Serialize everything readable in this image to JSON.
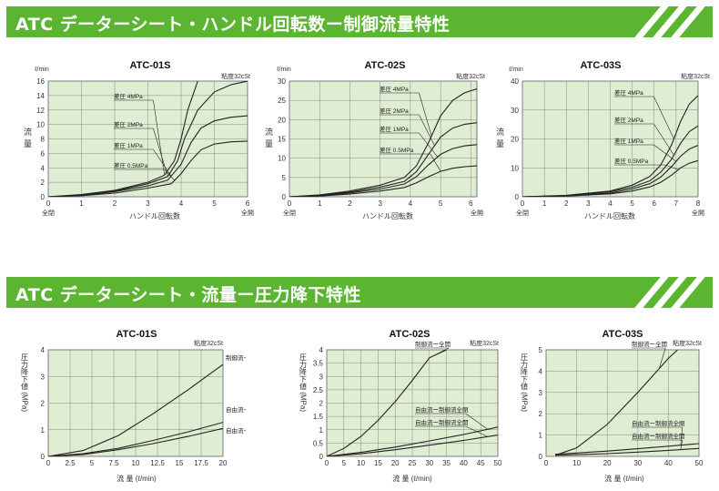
{
  "banners": [
    {
      "title": "ATC データーシート・ハンドル回転数ー制御流量特性"
    },
    {
      "title": "ATC データーシート・流量ー圧力降下特性"
    }
  ],
  "chart_data": [
    {
      "type": "line",
      "title": "ATC-01S",
      "viscosity_note": "粘度32cSt",
      "y_unit": "ℓ/min",
      "ylabel": "流量",
      "xlabel": "ハンドル回転数",
      "xlim": [
        0,
        6
      ],
      "ylim": [
        0,
        16
      ],
      "xticks": [
        0,
        1,
        2,
        3,
        4,
        5,
        6
      ],
      "yticks": [
        0,
        2,
        4,
        6,
        8,
        10,
        12,
        14,
        16
      ],
      "x_end_labels": {
        "start": "全閉",
        "end": "全開"
      },
      "series": [
        {
          "name": "差圧 4MPa",
          "x": [
            0,
            1,
            2,
            3,
            3.5,
            3.8,
            4.0,
            4.2,
            4.5
          ],
          "y": [
            0,
            0.3,
            0.9,
            2.0,
            3.0,
            5.0,
            8.0,
            12.0,
            16.0
          ]
        },
        {
          "name": "差圧 2MPa",
          "x": [
            0,
            1,
            2,
            3,
            3.6,
            3.9,
            4.1,
            4.5,
            5.0,
            5.5,
            6.0
          ],
          "y": [
            0,
            0.25,
            0.8,
            1.8,
            2.8,
            5.0,
            8.0,
            12.0,
            14.5,
            15.5,
            16.0
          ]
        },
        {
          "name": "差圧 1MPa",
          "x": [
            0,
            1,
            2,
            3,
            3.6,
            4.0,
            4.3,
            4.6,
            5.0,
            5.5,
            6.0
          ],
          "y": [
            0,
            0.2,
            0.7,
            1.5,
            2.3,
            4.5,
            7.5,
            9.5,
            10.5,
            11.0,
            11.2
          ]
        },
        {
          "name": "差圧 0.5MPa",
          "x": [
            0,
            1,
            2,
            3,
            3.7,
            4.0,
            4.3,
            4.6,
            5.0,
            5.5,
            6.0
          ],
          "y": [
            0,
            0.15,
            0.5,
            1.2,
            1.8,
            3.2,
            5.0,
            6.5,
            7.3,
            7.6,
            7.7
          ]
        }
      ]
    },
    {
      "type": "line",
      "title": "ATC-02S",
      "viscosity_note": "粘度32cSt",
      "y_unit": "ℓ/min",
      "ylabel": "流量",
      "xlabel": "ハンドル回転数",
      "xlim": [
        0,
        6.2
      ],
      "ylim": [
        0,
        30
      ],
      "xticks": [
        0,
        1,
        2,
        3,
        4,
        5,
        6
      ],
      "yticks": [
        0,
        5,
        10,
        15,
        20,
        25,
        30
      ],
      "x_end_labels": {
        "start": "全閉",
        "end": "全開"
      },
      "series": [
        {
          "name": "差圧 4MPa",
          "x": [
            0,
            1,
            2,
            3,
            3.8,
            4.2,
            4.6,
            5.0,
            5.4,
            5.8,
            6.2
          ],
          "y": [
            0,
            0.5,
            1.5,
            3.0,
            5.0,
            8.0,
            14.0,
            21.0,
            25.0,
            27.0,
            28.0
          ]
        },
        {
          "name": "差圧 2MPa",
          "x": [
            0,
            1,
            2,
            3,
            3.8,
            4.2,
            4.6,
            5.0,
            5.4,
            5.8,
            6.2
          ],
          "y": [
            0,
            0.4,
            1.2,
            2.5,
            4.0,
            6.5,
            11.0,
            15.5,
            17.8,
            18.8,
            19.2
          ]
        },
        {
          "name": "差圧 1MPa",
          "x": [
            0,
            1,
            2,
            3,
            3.8,
            4.2,
            4.6,
            5.0,
            5.4,
            5.8,
            6.2
          ],
          "y": [
            0,
            0.3,
            1.0,
            2.0,
            3.3,
            5.2,
            8.3,
            11.0,
            12.5,
            13.2,
            13.5
          ]
        },
        {
          "name": "差圧 0.5MPa",
          "x": [
            0,
            1,
            2,
            3,
            3.8,
            4.2,
            4.6,
            5.0,
            5.4,
            5.8,
            6.2
          ],
          "y": [
            0,
            0.2,
            0.7,
            1.5,
            2.4,
            3.6,
            5.2,
            6.6,
            7.4,
            7.8,
            8.0
          ]
        }
      ]
    },
    {
      "type": "line",
      "title": "ATC-03S",
      "viscosity_note": "粘度32cSt",
      "y_unit": "ℓ/min",
      "ylabel": "流量",
      "xlabel": "ハンドル回転数",
      "xlim": [
        0,
        8
      ],
      "ylim": [
        0,
        40
      ],
      "xticks": [
        0,
        1,
        2,
        3,
        4,
        5,
        6,
        7,
        8
      ],
      "yticks": [
        0,
        10,
        20,
        30,
        40
      ],
      "x_end_labels": {
        "start": "全閉",
        "end": "全開"
      },
      "series": [
        {
          "name": "差圧 4MPa",
          "x": [
            0,
            2,
            4,
            5,
            5.8,
            6.3,
            6.8,
            7.2,
            7.6,
            8.0
          ],
          "y": [
            0,
            0.5,
            2.0,
            4.0,
            7.0,
            11.0,
            18.0,
            26.0,
            32.0,
            35.0
          ]
        },
        {
          "name": "差圧 2MPa",
          "x": [
            0,
            2,
            4,
            5,
            5.8,
            6.3,
            6.8,
            7.2,
            7.6,
            8.0
          ],
          "y": [
            0,
            0.4,
            1.7,
            3.3,
            5.5,
            8.5,
            13.0,
            18.5,
            22.5,
            24.5
          ]
        },
        {
          "name": "差圧 1MPa",
          "x": [
            0,
            2,
            4,
            5,
            5.8,
            6.3,
            6.8,
            7.2,
            7.6,
            8.0
          ],
          "y": [
            0,
            0.3,
            1.3,
            2.7,
            4.5,
            6.8,
            10.5,
            14.0,
            16.5,
            17.8
          ]
        },
        {
          "name": "差圧 0.5MPa",
          "x": [
            0,
            2,
            4,
            5,
            5.8,
            6.3,
            6.8,
            7.2,
            7.6,
            8.0
          ],
          "y": [
            0,
            0.25,
            1.0,
            2.0,
            3.4,
            5.0,
            7.5,
            10.0,
            11.6,
            12.5
          ]
        }
      ]
    },
    {
      "type": "line",
      "title": "ATC-01S",
      "viscosity_note": "粘度32cSt",
      "ylabel": "圧力降下値 (MPa)",
      "xlabel": "流 量 (ℓ/min)",
      "xlim": [
        0,
        20
      ],
      "ylim": [
        0,
        4
      ],
      "xticks": [
        0,
        2.5,
        5,
        7.5,
        10,
        12.5,
        15,
        17.5,
        20
      ],
      "yticks": [
        0,
        1,
        2,
        3,
        4
      ],
      "series": [
        {
          "name": "制御流ー全開",
          "x": [
            0,
            4,
            8,
            12,
            16,
            20
          ],
          "y": [
            0,
            0.22,
            0.78,
            1.6,
            2.5,
            3.45
          ]
        },
        {
          "name": "自由流ー制御流全閉",
          "x": [
            0,
            4,
            8,
            12,
            16,
            20
          ],
          "y": [
            0,
            0.1,
            0.3,
            0.6,
            0.92,
            1.28
          ]
        },
        {
          "name": "自由流ー制御流全開",
          "x": [
            0,
            4,
            8,
            12,
            16,
            20
          ],
          "y": [
            0,
            0.07,
            0.25,
            0.48,
            0.75,
            1.05
          ]
        }
      ]
    },
    {
      "type": "line",
      "title": "ATC-02S",
      "viscosity_note": "粘度32cSt",
      "ylabel": "圧力降下値 (MPa)",
      "xlabel": "流 量 (ℓ/min)",
      "xlim": [
        0,
        50
      ],
      "ylim": [
        0,
        4
      ],
      "xticks": [
        0,
        5,
        10,
        15,
        20,
        25,
        30,
        35,
        40,
        45,
        50
      ],
      "yticks": [
        0,
        0.5,
        1,
        1.5,
        2,
        2.5,
        3,
        3.5,
        4
      ],
      "series": [
        {
          "name": "制御流ー全開",
          "x": [
            0,
            5,
            10,
            15,
            20,
            25,
            30,
            35
          ],
          "y": [
            0,
            0.3,
            0.75,
            1.35,
            2.05,
            2.85,
            3.7,
            4.0
          ]
        },
        {
          "name": "自由流ー制御流全閉",
          "x": [
            0,
            10,
            20,
            30,
            40,
            50
          ],
          "y": [
            0,
            0.15,
            0.35,
            0.58,
            0.82,
            1.1
          ]
        },
        {
          "name": "自由流ー制御流全開",
          "x": [
            0,
            10,
            20,
            30,
            40,
            50
          ],
          "y": [
            0,
            0.1,
            0.25,
            0.42,
            0.6,
            0.8
          ]
        }
      ]
    },
    {
      "type": "line",
      "title": "ATC-03S",
      "viscosity_note": "粘度32cSt",
      "ylabel": "圧力降下値 (MPa)",
      "xlabel": "流 量 (ℓ/min)",
      "xlim": [
        0,
        50
      ],
      "ylim": [
        0,
        5
      ],
      "xticks": [
        0,
        10,
        20,
        30,
        40,
        50
      ],
      "yticks": [
        0,
        1,
        2,
        3,
        4,
        5
      ],
      "series": [
        {
          "name": "制御流ー全開",
          "x": [
            3,
            10,
            20,
            30,
            40,
            43
          ],
          "y": [
            0.05,
            0.4,
            1.5,
            3.0,
            4.6,
            5.0
          ]
        },
        {
          "name": "自由流ー制御流全閉",
          "x": [
            3,
            10,
            20,
            30,
            40,
            50
          ],
          "y": [
            0.1,
            0.16,
            0.25,
            0.36,
            0.48,
            0.6
          ]
        },
        {
          "name": "自由流ー制御流全開",
          "x": [
            3,
            10,
            20,
            30,
            40,
            50
          ],
          "y": [
            0.05,
            0.08,
            0.13,
            0.2,
            0.28,
            0.37
          ]
        }
      ]
    }
  ]
}
